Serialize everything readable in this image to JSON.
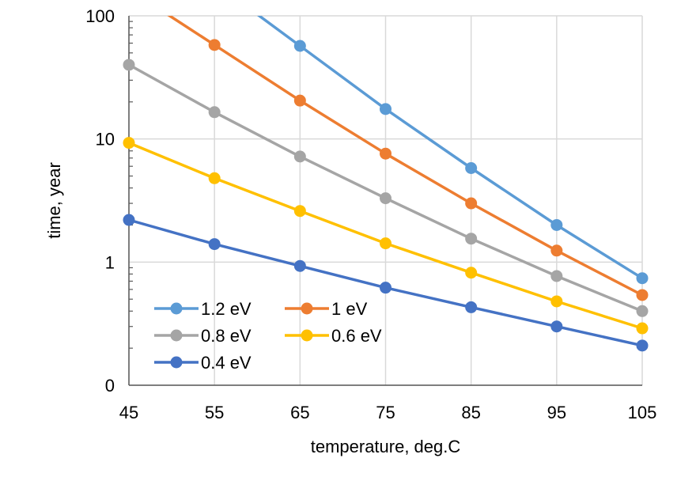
{
  "chart_data": {
    "type": "line",
    "title": "",
    "xlabel": "temperature, deg.C",
    "ylabel": "time, year",
    "y_scale": "log",
    "x": [
      45,
      55,
      65,
      75,
      85,
      95,
      105
    ],
    "x_ticks": [
      "45",
      "55",
      "65",
      "75",
      "85",
      "95",
      "105"
    ],
    "y_ticks": [
      {
        "value": 0.1,
        "label": "0"
      },
      {
        "value": 1,
        "label": "1"
      },
      {
        "value": 10,
        "label": "10"
      },
      {
        "value": 100,
        "label": "100"
      }
    ],
    "xlim": [
      45,
      105
    ],
    "ylim": [
      0.1,
      100
    ],
    "grid": true,
    "legend_placement": "bottom-left",
    "series": [
      {
        "name": "1.2 eV",
        "color": "#5B9BD5",
        "values": [
          null,
          null,
          57,
          17.5,
          5.8,
          2.0,
          0.74
        ]
      },
      {
        "name": "1 eV",
        "color": "#ED7D31",
        "values": [
          null,
          58,
          20.5,
          7.6,
          3.0,
          1.24,
          0.54
        ]
      },
      {
        "name": "0.8 eV",
        "color": "#A5A5A5",
        "values": [
          40,
          16.5,
          7.2,
          3.3,
          1.55,
          0.77,
          0.4
        ]
      },
      {
        "name": "0.6 eV",
        "color": "#FFC000",
        "values": [
          9.3,
          4.8,
          2.6,
          1.42,
          0.82,
          0.48,
          0.29
        ]
      },
      {
        "name": "0.4 eV",
        "color": "#4472C4",
        "values": [
          2.2,
          1.4,
          0.93,
          0.62,
          0.43,
          0.3,
          0.21
        ]
      }
    ]
  }
}
